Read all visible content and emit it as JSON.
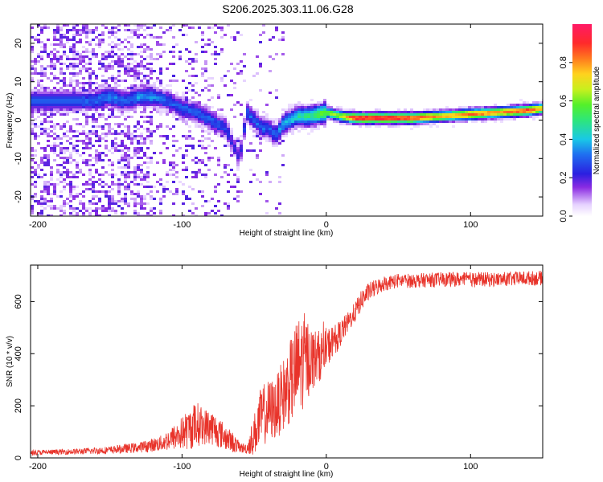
{
  "title": "S206.2025.303.11.06.G28",
  "chart_data": [
    {
      "type": "heatmap",
      "xlabel": "Height of straight line (km)",
      "ylabel": "Frequency (Hz)",
      "xlim": [
        -205,
        150
      ],
      "ylim": [
        -25,
        25
      ],
      "xticks": [
        -200,
        -100,
        0,
        100
      ],
      "xtick_labels": [
        "-200",
        "-100",
        "0",
        "100"
      ],
      "yticks": [
        -20,
        -10,
        0,
        10,
        20
      ],
      "ytick_labels": [
        "-20",
        "-10",
        "0",
        "10",
        "20"
      ],
      "colorbar": {
        "label": "Normalized spectral amplitude",
        "range": [
          0,
          1
        ],
        "ticks": [
          0.0,
          0.2,
          0.4,
          0.6,
          0.8
        ],
        "tick_labels": [
          "0.0",
          "0.2",
          "0.4",
          "0.6",
          "0.8"
        ]
      },
      "ridge": {
        "x": [
          -160,
          -150,
          -140,
          -130,
          -120,
          -110,
          -100,
          -90,
          -80,
          -70,
          -60,
          -55,
          -50,
          -45,
          -40,
          -35,
          -30,
          -25,
          -20,
          -10,
          0,
          10,
          20,
          40,
          60,
          80,
          100,
          120,
          140,
          150
        ],
        "frequency": [
          5,
          6,
          5,
          6,
          6,
          5,
          3,
          2,
          0,
          -2,
          -10,
          2,
          0,
          -2,
          -2,
          -4,
          -1,
          0,
          1,
          1,
          2,
          1,
          0.5,
          0.5,
          0.5,
          1,
          1.5,
          2,
          2.5,
          3
        ],
        "amplitude": [
          0.3,
          0.35,
          0.3,
          0.35,
          0.35,
          0.3,
          0.3,
          0.3,
          0.3,
          0.25,
          0.2,
          0.3,
          0.3,
          0.3,
          0.3,
          0.3,
          0.4,
          0.4,
          0.45,
          0.5,
          0.6,
          0.65,
          0.95,
          0.95,
          0.9,
          0.75,
          0.85,
          0.8,
          0.9,
          0.75
        ]
      }
    },
    {
      "type": "line",
      "xlabel": "Height of straight line (km)",
      "ylabel": "SNR (10 * v/v)",
      "xlim": [
        -205,
        150
      ],
      "ylim": [
        0,
        740
      ],
      "xticks": [
        -200,
        -100,
        0,
        100
      ],
      "xtick_labels": [
        "-200",
        "-100",
        "0",
        "100"
      ],
      "yticks": [
        0,
        200,
        400,
        600
      ],
      "ytick_labels": [
        "0",
        "200",
        "400",
        "600"
      ],
      "color": "#e8332a",
      "series": [
        {
          "name": "SNR",
          "x": [
            -205,
            -190,
            -170,
            -150,
            -130,
            -115,
            -105,
            -95,
            -90,
            -85,
            -80,
            -75,
            -70,
            -65,
            -60,
            -55,
            -50,
            -45,
            -40,
            -35,
            -30,
            -25,
            -20,
            -15,
            -10,
            -5,
            0,
            5,
            10,
            15,
            20,
            25,
            30,
            40,
            50,
            60,
            80,
            100,
            120,
            140,
            150
          ],
          "values": [
            20,
            22,
            25,
            30,
            40,
            55,
            80,
            110,
            130,
            120,
            120,
            100,
            80,
            60,
            40,
            35,
            90,
            160,
            180,
            190,
            240,
            290,
            340,
            380,
            380,
            390,
            420,
            450,
            480,
            520,
            560,
            610,
            640,
            670,
            680,
            680,
            685,
            685,
            685,
            690,
            690
          ],
          "noise": [
            10,
            10,
            12,
            15,
            20,
            30,
            50,
            80,
            90,
            70,
            70,
            60,
            50,
            40,
            20,
            20,
            80,
            120,
            120,
            120,
            140,
            160,
            200,
            180,
            120,
            100,
            80,
            60,
            50,
            40,
            40,
            40,
            35,
            30,
            28,
            28,
            28,
            28,
            28,
            28,
            28
          ]
        }
      ]
    }
  ]
}
